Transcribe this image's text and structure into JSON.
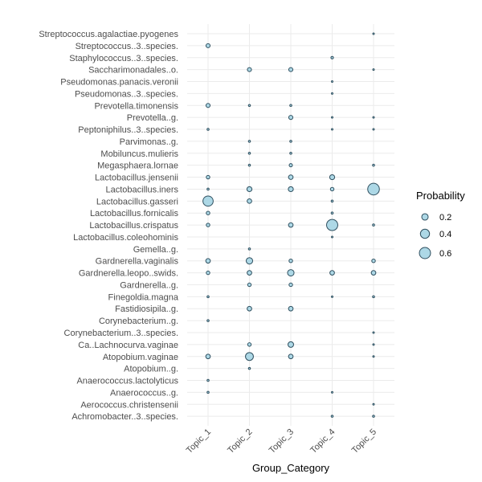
{
  "chart_data": {
    "type": "scatter",
    "subtype": "bubble",
    "xlabel": "Group_Category",
    "ylabel": "",
    "x_categories": [
      "Topic_1",
      "Topic_2",
      "Topic_3",
      "Topic_4",
      "Topic_5"
    ],
    "y_categories": [
      "Streptococcus.agalactiae.pyogenes",
      "Streptococcus..3..species.",
      "Staphylococcus..3..species.",
      "Saccharimonadales..o.",
      "Pseudomonas.panacis.veronii",
      "Pseudomonas..3..species.",
      "Prevotella.timonensis",
      "Prevotella..g.",
      "Peptoniphilus..3..species.",
      "Parvimonas..g.",
      "Mobiluncus.mulieris",
      "Megasphaera.lornae",
      "Lactobacillus.jensenii",
      "Lactobacillus.iners",
      "Lactobacillus.gasseri",
      "Lactobacillus.fornicalis",
      "Lactobacillus.crispatus",
      "Lactobacillus.coleohominis",
      "Gemella..g.",
      "Gardnerella.vaginalis",
      "Gardnerella.leopo..swids.",
      "Gardnerella..g.",
      "Finegoldia.magna",
      "Fastidiosipila..g.",
      "Corynebacterium..g.",
      "Corynebacterium..3..species.",
      "Ca..Lachnocurva.vaginae",
      "Atopobium.vaginae",
      "Atopobium..g.",
      "Anaerococcus.lactolyticus",
      "Anaerococcus..g.",
      "Aerococcus.christensenii",
      "Achromobacter..3..species."
    ],
    "values": [
      [
        null,
        null,
        null,
        null,
        0.005
      ],
      [
        0.08,
        null,
        null,
        null,
        null
      ],
      [
        null,
        null,
        null,
        0.03,
        null
      ],
      [
        null,
        0.08,
        0.08,
        null,
        0.005
      ],
      [
        null,
        null,
        null,
        0.005,
        null
      ],
      [
        null,
        null,
        null,
        0.005,
        null
      ],
      [
        0.08,
        0.02,
        0.02,
        null,
        null
      ],
      [
        null,
        null,
        0.08,
        0.005,
        0.005
      ],
      [
        0.02,
        null,
        null,
        0.005,
        0.005
      ],
      [
        null,
        0.02,
        0.02,
        null,
        null
      ],
      [
        null,
        0.02,
        0.02,
        null,
        null
      ],
      [
        null,
        0.02,
        0.05,
        null,
        0.02
      ],
      [
        0.06,
        null,
        0.1,
        0.12,
        null
      ],
      [
        0.02,
        0.12,
        0.12,
        0.06,
        0.65
      ],
      [
        0.5,
        0.1,
        null,
        0.02,
        null
      ],
      [
        0.06,
        null,
        null,
        0.02,
        null
      ],
      [
        0.06,
        null,
        0.1,
        0.6,
        0.02
      ],
      [
        null,
        null,
        null,
        0.005,
        null
      ],
      [
        null,
        0.02,
        null,
        null,
        null
      ],
      [
        0.1,
        0.2,
        0.06,
        null,
        0.06
      ],
      [
        0.06,
        0.1,
        0.2,
        0.1,
        0.1
      ],
      [
        null,
        0.06,
        0.06,
        null,
        null
      ],
      [
        0.02,
        null,
        null,
        0.005,
        0.02
      ],
      [
        null,
        0.1,
        0.1,
        null,
        null
      ],
      [
        0.02,
        null,
        null,
        null,
        null
      ],
      [
        null,
        null,
        null,
        null,
        0.005
      ],
      [
        null,
        0.06,
        0.15,
        null,
        0.005
      ],
      [
        0.1,
        0.3,
        0.1,
        null,
        0.005
      ],
      [
        null,
        0.02,
        null,
        null,
        null
      ],
      [
        0.02,
        null,
        null,
        null,
        null
      ],
      [
        0.02,
        null,
        null,
        0.005,
        null
      ],
      [
        null,
        null,
        null,
        null,
        0.005
      ],
      [
        null,
        null,
        null,
        0.02,
        0.02
      ]
    ],
    "legend": {
      "title": "Probability",
      "position": "right",
      "entries": [
        {
          "label": "0.2",
          "value": 0.2
        },
        {
          "label": "0.4",
          "value": 0.4
        },
        {
          "label": "0.6",
          "value": 0.6
        }
      ]
    },
    "colors": {
      "fill": "#add8e6",
      "stroke": "#2f4f5f"
    },
    "grid": true
  }
}
